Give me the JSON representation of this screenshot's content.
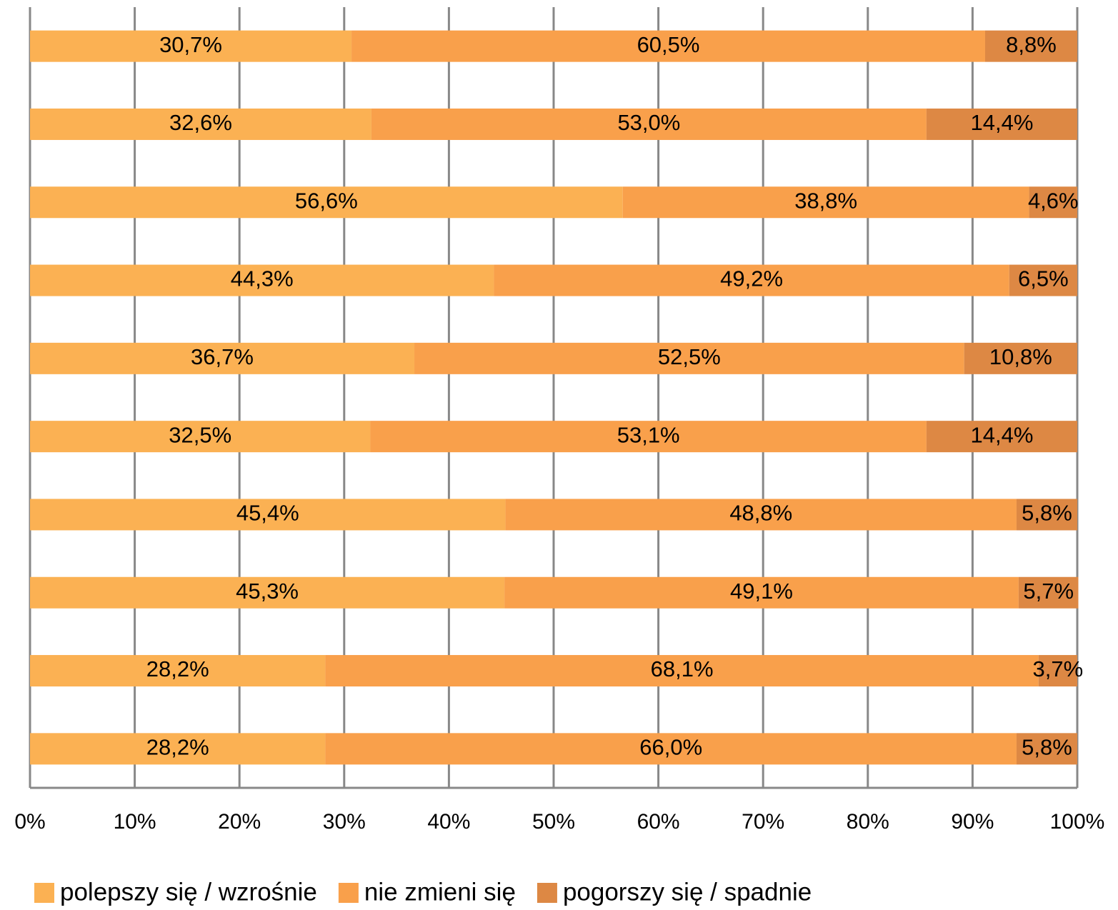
{
  "chart_data": {
    "type": "stacked-bar-horizontal",
    "categories": [
      null,
      null,
      null,
      null,
      null,
      null,
      null,
      null,
      null,
      null
    ],
    "series": [
      {
        "name": "polepszy się / wzrośnie",
        "color": "#fbb153",
        "values": [
          30.7,
          32.6,
          56.6,
          44.3,
          36.7,
          32.5,
          45.4,
          45.3,
          28.2,
          28.2
        ],
        "value_labels": [
          "30,7%",
          "32,6%",
          "56,6%",
          "44,3%",
          "36,7%",
          "32,5%",
          "45,4%",
          "45,3%",
          "28,2%",
          "28,2%"
        ]
      },
      {
        "name": "nie zmieni się",
        "color": "#f9a04b",
        "values": [
          60.5,
          53.0,
          38.8,
          49.2,
          52.5,
          53.1,
          48.8,
          49.1,
          68.1,
          66.0
        ],
        "value_labels": [
          "60,5%",
          "53,0%",
          "38,8%",
          "49,2%",
          "52,5%",
          "53,1%",
          "48,8%",
          "49,1%",
          "68,1%",
          "66,0%"
        ]
      },
      {
        "name": "pogorszy się / spadnie",
        "color": "#dd8844",
        "values": [
          8.8,
          14.4,
          4.6,
          6.5,
          10.8,
          14.4,
          5.8,
          5.7,
          3.7,
          5.8
        ],
        "value_labels": [
          "8,8%",
          "14,4%",
          "4,6%",
          "6,5%",
          "10,8%",
          "14,4%",
          "5,8%",
          "5,7%",
          "3,7%",
          "5,8%"
        ]
      }
    ],
    "xlim": [
      0,
      100
    ],
    "xticks": [
      {
        "value": 0,
        "label": "0%"
      },
      {
        "value": 10,
        "label": "10%"
      },
      {
        "value": 20,
        "label": "20%"
      },
      {
        "value": 30,
        "label": "30%"
      },
      {
        "value": 40,
        "label": "40%"
      },
      {
        "value": 50,
        "label": "50%"
      },
      {
        "value": 60,
        "label": "60%"
      },
      {
        "value": 70,
        "label": "70%"
      },
      {
        "value": 80,
        "label": "80%"
      },
      {
        "value": 90,
        "label": "90%"
      },
      {
        "value": 100,
        "label": "100%"
      }
    ],
    "grid": true,
    "legend": "bottom"
  }
}
